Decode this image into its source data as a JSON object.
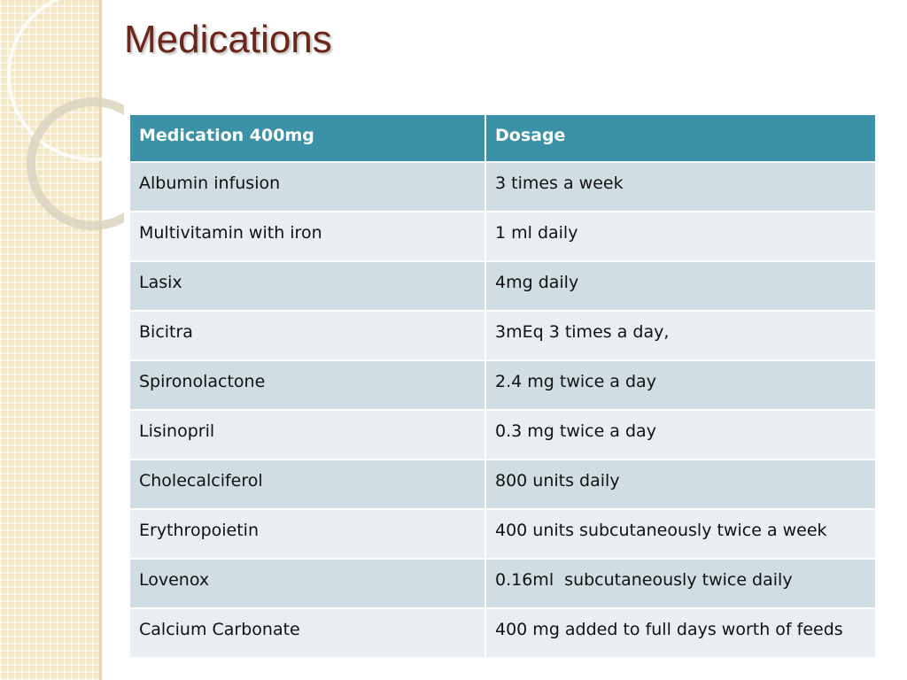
{
  "header": {
    "title": "Medications"
  },
  "table": {
    "columns": [
      "Medication 400mg",
      "Dosage"
    ],
    "rows": [
      [
        "Albumin infusion",
        "3 times a week"
      ],
      [
        "Multivitamin with iron",
        "1 ml daily"
      ],
      [
        "Lasix",
        "4mg daily"
      ],
      [
        "Bicitra",
        "3mEq 3 times a day,"
      ],
      [
        "Spironolactone",
        "2.4 mg twice a day"
      ],
      [
        "Lisinopril",
        "0.3 mg twice a day"
      ],
      [
        "Cholecalciferol",
        "800 units daily"
      ],
      [
        "Erythropoietin",
        "400 units subcutaneously twice a week"
      ],
      [
        "Lovenox",
        "0.16ml  subcutaneously twice daily"
      ],
      [
        "Calcium Carbonate",
        "400 mg added to full days worth of feeds"
      ]
    ]
  }
}
